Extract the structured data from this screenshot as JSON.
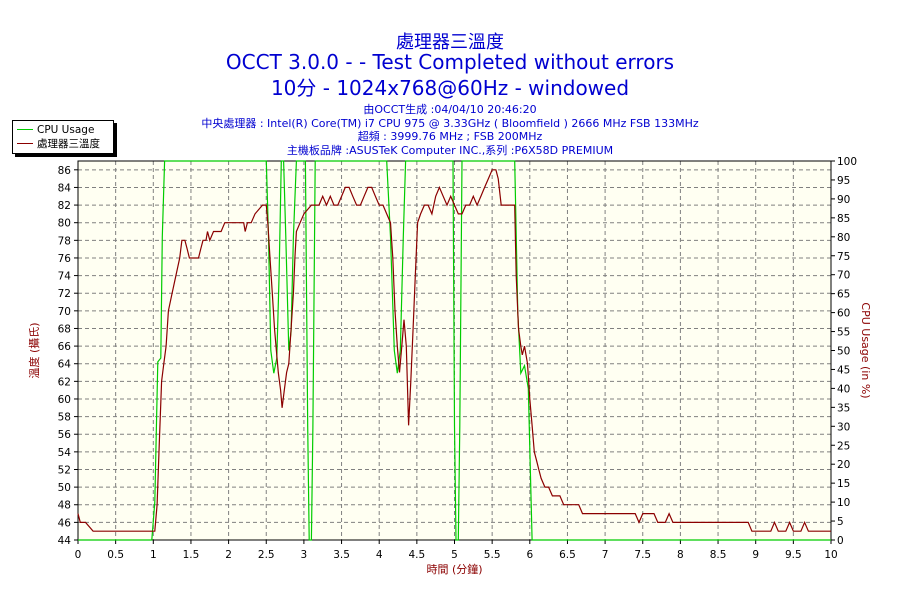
{
  "header": {
    "title": "處理器三溫度",
    "subtitle1": "OCCT 3.0.0 -  - Test Completed without errors",
    "subtitle2": "10分 - 1024x768@60Hz - windowed",
    "info": [
      "由OCCT生成 :04/04/10 20:46:20",
      "中央處理器 : Intel(R) Core(TM) i7 CPU 975 @ 3.33GHz ( Bloomfield ) 2666 MHz FSB 133MHz",
      "超頻 : 3999.76 MHz ; FSB 200MHz",
      "主機板品牌 :ASUSTeK Computer INC.,系列 :P6X58D PREMIUM"
    ]
  },
  "legend": {
    "items": [
      {
        "label": "CPU Usage",
        "color": "#00cc00"
      },
      {
        "label": "處理器三溫度",
        "color": "#8b0000"
      }
    ]
  },
  "colors": {
    "plot_bg": "#fffff2",
    "grid": "#808080",
    "temp": "#8b0000",
    "usage": "#00cc00"
  },
  "chart_data": {
    "type": "line",
    "xlabel": "時間 (分鐘)",
    "ylabel": "溫度 (攝氏)",
    "y2label": "CPU Usage (in %)",
    "xlim": [
      0,
      10
    ],
    "ylim": [
      44,
      87
    ],
    "y2lim": [
      0,
      100
    ],
    "x_ticks": [
      0,
      0.5,
      1,
      1.5,
      2,
      2.5,
      3,
      3.5,
      4,
      4.5,
      5,
      5.5,
      6,
      6.5,
      7,
      7.5,
      8,
      8.5,
      9,
      9.5,
      10
    ],
    "y_ticks": [
      44,
      46,
      48,
      50,
      52,
      54,
      56,
      58,
      60,
      62,
      64,
      66,
      68,
      70,
      72,
      74,
      76,
      78,
      80,
      82,
      84,
      86
    ],
    "y2_ticks": [
      0,
      5,
      10,
      15,
      20,
      25,
      30,
      35,
      40,
      45,
      50,
      55,
      60,
      65,
      70,
      75,
      80,
      85,
      90,
      95,
      100
    ],
    "grid": true,
    "legend_position": "top-left",
    "series": [
      {
        "name": "處理器三溫度",
        "axis": "left",
        "points": [
          [
            0,
            47
          ],
          [
            0.03,
            46
          ],
          [
            0.1,
            46
          ],
          [
            0.2,
            45
          ],
          [
            0.9,
            45
          ],
          [
            1.02,
            45
          ],
          [
            1.05,
            48
          ],
          [
            1.08,
            55
          ],
          [
            1.11,
            62
          ],
          [
            1.14,
            64
          ],
          [
            1.17,
            66
          ],
          [
            1.2,
            70
          ],
          [
            1.25,
            72
          ],
          [
            1.3,
            74
          ],
          [
            1.35,
            76
          ],
          [
            1.38,
            78
          ],
          [
            1.42,
            78
          ],
          [
            1.45,
            77
          ],
          [
            1.48,
            76
          ],
          [
            1.6,
            76
          ],
          [
            1.63,
            77
          ],
          [
            1.66,
            78
          ],
          [
            1.7,
            78
          ],
          [
            1.72,
            79
          ],
          [
            1.75,
            78
          ],
          [
            1.8,
            79
          ],
          [
            1.9,
            79
          ],
          [
            1.95,
            80
          ],
          [
            2.05,
            80
          ],
          [
            2.2,
            80
          ],
          [
            2.22,
            79
          ],
          [
            2.25,
            80
          ],
          [
            2.3,
            80
          ],
          [
            2.35,
            81
          ],
          [
            2.45,
            82
          ],
          [
            2.5,
            82
          ],
          [
            2.52,
            80
          ],
          [
            2.55,
            76
          ],
          [
            2.58,
            72
          ],
          [
            2.61,
            68
          ],
          [
            2.63,
            66
          ],
          [
            2.66,
            63
          ],
          [
            2.69,
            61
          ],
          [
            2.71,
            59
          ],
          [
            2.74,
            61
          ],
          [
            2.77,
            63
          ],
          [
            2.8,
            64
          ],
          [
            2.83,
            68
          ],
          [
            2.86,
            72
          ],
          [
            2.88,
            76
          ],
          [
            2.9,
            79
          ],
          [
            2.95,
            80
          ],
          [
            3.0,
            81
          ],
          [
            3.1,
            82
          ],
          [
            3.2,
            82
          ],
          [
            3.25,
            83
          ],
          [
            3.3,
            82
          ],
          [
            3.35,
            83
          ],
          [
            3.4,
            82
          ],
          [
            3.45,
            82
          ],
          [
            3.5,
            83
          ],
          [
            3.55,
            84
          ],
          [
            3.6,
            84
          ],
          [
            3.65,
            83
          ],
          [
            3.7,
            82
          ],
          [
            3.75,
            82
          ],
          [
            3.8,
            83
          ],
          [
            3.85,
            84
          ],
          [
            3.9,
            84
          ],
          [
            3.95,
            83
          ],
          [
            4.0,
            82
          ],
          [
            4.05,
            82
          ],
          [
            4.1,
            81
          ],
          [
            4.15,
            80
          ],
          [
            4.18,
            76
          ],
          [
            4.21,
            70
          ],
          [
            4.24,
            66
          ],
          [
            4.27,
            63
          ],
          [
            4.3,
            66
          ],
          [
            4.33,
            69
          ],
          [
            4.36,
            66
          ],
          [
            4.39,
            57
          ],
          [
            4.42,
            62
          ],
          [
            4.45,
            68
          ],
          [
            4.48,
            74
          ],
          [
            4.51,
            80
          ],
          [
            4.55,
            81
          ],
          [
            4.6,
            82
          ],
          [
            4.65,
            82
          ],
          [
            4.7,
            81
          ],
          [
            4.75,
            83
          ],
          [
            4.8,
            84
          ],
          [
            4.85,
            83
          ],
          [
            4.9,
            82
          ],
          [
            4.95,
            83
          ],
          [
            5.0,
            82
          ],
          [
            5.05,
            81
          ],
          [
            5.1,
            81
          ],
          [
            5.15,
            82
          ],
          [
            5.2,
            82
          ],
          [
            5.25,
            83
          ],
          [
            5.3,
            82
          ],
          [
            5.35,
            83
          ],
          [
            5.4,
            84
          ],
          [
            5.45,
            85
          ],
          [
            5.5,
            86
          ],
          [
            5.55,
            86
          ],
          [
            5.58,
            85
          ],
          [
            5.62,
            82
          ],
          [
            5.7,
            82
          ],
          [
            5.8,
            82
          ],
          [
            5.82,
            74
          ],
          [
            5.85,
            68
          ],
          [
            5.88,
            66
          ],
          [
            5.9,
            65
          ],
          [
            5.93,
            66
          ],
          [
            5.97,
            64
          ],
          [
            6.0,
            60
          ],
          [
            6.03,
            57
          ],
          [
            6.06,
            54
          ],
          [
            6.09,
            53
          ],
          [
            6.12,
            52
          ],
          [
            6.15,
            51
          ],
          [
            6.2,
            50
          ],
          [
            6.25,
            50
          ],
          [
            6.3,
            49
          ],
          [
            6.4,
            49
          ],
          [
            6.45,
            48
          ],
          [
            6.6,
            48
          ],
          [
            6.65,
            48
          ],
          [
            6.7,
            47
          ],
          [
            7.05,
            47
          ],
          [
            7.1,
            47
          ],
          [
            7.2,
            47
          ],
          [
            7.3,
            47
          ],
          [
            7.4,
            47
          ],
          [
            7.45,
            46
          ],
          [
            7.5,
            47
          ],
          [
            7.6,
            47
          ],
          [
            7.65,
            47
          ],
          [
            7.7,
            46
          ],
          [
            7.8,
            46
          ],
          [
            7.85,
            47
          ],
          [
            7.9,
            46
          ],
          [
            8.0,
            46
          ],
          [
            8.5,
            46
          ],
          [
            8.9,
            46
          ],
          [
            8.95,
            45
          ],
          [
            9.2,
            45
          ],
          [
            9.25,
            46
          ],
          [
            9.3,
            45
          ],
          [
            9.4,
            45
          ],
          [
            9.45,
            46
          ],
          [
            9.5,
            45
          ],
          [
            9.6,
            45
          ],
          [
            9.65,
            46
          ],
          [
            9.7,
            45
          ],
          [
            10.0,
            45
          ]
        ]
      },
      {
        "name": "CPU Usage",
        "axis": "right",
        "points": [
          [
            0,
            0
          ],
          [
            0.98,
            0
          ],
          [
            1.02,
            10
          ],
          [
            1.06,
            47
          ],
          [
            1.1,
            48
          ],
          [
            1.12,
            80
          ],
          [
            1.15,
            100
          ],
          [
            2.5,
            100
          ],
          [
            2.53,
            80
          ],
          [
            2.56,
            50
          ],
          [
            2.6,
            44
          ],
          [
            2.64,
            48
          ],
          [
            2.67,
            70
          ],
          [
            2.7,
            100
          ],
          [
            2.73,
            100
          ],
          [
            2.76,
            80
          ],
          [
            2.8,
            50
          ],
          [
            2.83,
            55
          ],
          [
            2.86,
            80
          ],
          [
            2.9,
            100
          ],
          [
            3.02,
            100
          ],
          [
            3.05,
            30
          ],
          [
            3.07,
            0
          ],
          [
            3.1,
            0
          ],
          [
            3.12,
            30
          ],
          [
            3.15,
            100
          ],
          [
            4.1,
            100
          ],
          [
            4.15,
            80
          ],
          [
            4.2,
            50
          ],
          [
            4.24,
            44
          ],
          [
            4.28,
            50
          ],
          [
            4.32,
            80
          ],
          [
            4.35,
            100
          ],
          [
            4.98,
            100
          ],
          [
            5.0,
            30
          ],
          [
            5.02,
            0
          ],
          [
            5.05,
            0
          ],
          [
            5.07,
            30
          ],
          [
            5.1,
            100
          ],
          [
            5.8,
            100
          ],
          [
            5.84,
            60
          ],
          [
            5.88,
            44
          ],
          [
            5.93,
            46
          ],
          [
            5.98,
            40
          ],
          [
            6.03,
            0
          ],
          [
            10,
            0
          ]
        ]
      }
    ]
  }
}
